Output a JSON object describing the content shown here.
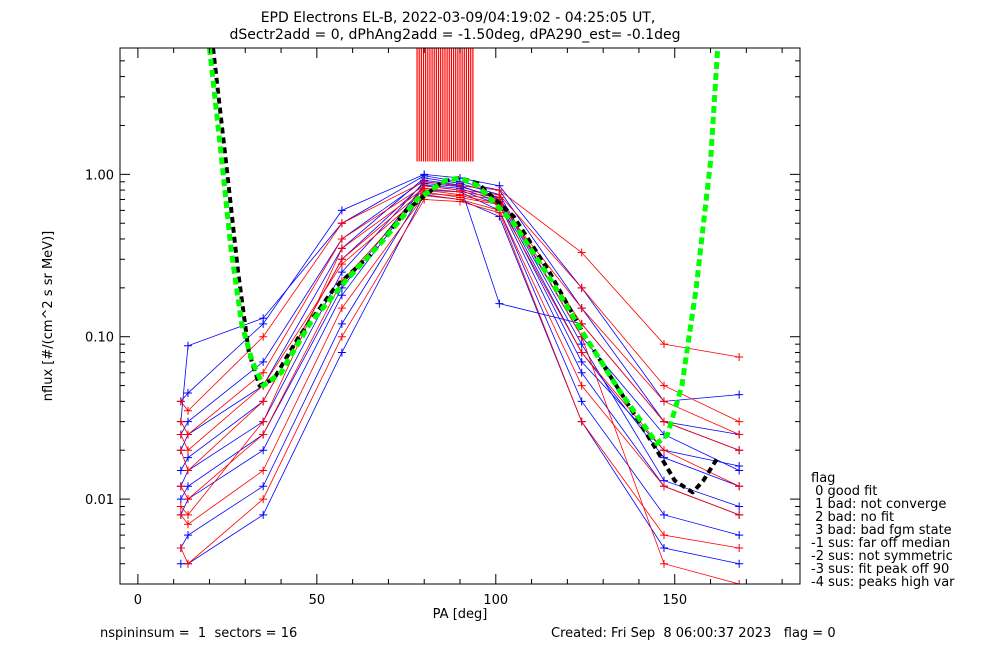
{
  "title_line1": "EPD Electrons EL-B, 2022-03-09/04:19:02 - 04:25:05 UT,",
  "title_line2": "dSectr2add = 0, dPhAng2add = -1.50deg, dPA290_est=  -0.1deg",
  "footer": {
    "left": "nspininsum =  1  sectors = 16",
    "right": "Created: Fri Sep  8 06:00:37 2023   flag = 0"
  },
  "legend": {
    "title": "flag",
    "entries": [
      " 0 good fit",
      " 1 bad: not converge",
      " 2 bad: no fit",
      " 3 bad: bad fgm state",
      "-1 sus: far off median",
      "-2 sus: not symmetric",
      "-3 sus: fit peak off 90",
      "-4 sus: peaks high var"
    ]
  },
  "colors": {
    "red_series": "#ff0000",
    "blue_series": "#0000ff",
    "fit_green": "#00ff00",
    "fit_black": "#000000"
  },
  "chart_data": {
    "type": "line",
    "xlabel": "PA [deg]",
    "ylabel": "nflux [#/(cm^2 s sr MeV)]",
    "xlim": [
      -5,
      185
    ],
    "ylim": [
      0.003,
      6
    ],
    "yscale": "log",
    "x_ticks": [
      0,
      50,
      100,
      150
    ],
    "y_ticks": [
      0.01,
      0.1,
      1.0
    ],
    "y_tick_labels": [
      "0.01",
      "0.10",
      "1.00"
    ],
    "grid": false,
    "pa_bins": [
      12,
      14,
      35,
      57,
      80,
      90,
      101,
      124,
      147,
      168
    ],
    "series": [
      {
        "color": "blue",
        "values": [
          0.04,
          0.045,
          0.12,
          0.6,
          1.0,
          0.95,
          0.85,
          0.2,
          0.04,
          0.044
        ]
      },
      {
        "color": "blue",
        "values": [
          0.03,
          0.088,
          0.13,
          0.5,
          0.98,
          0.9,
          0.8,
          0.15,
          0.03,
          0.02
        ]
      },
      {
        "color": "blue",
        "values": [
          0.02,
          0.025,
          0.05,
          0.35,
          0.95,
          0.88,
          0.75,
          0.1,
          0.025,
          0.015
        ]
      },
      {
        "color": "blue",
        "values": [
          0.012,
          0.015,
          0.03,
          0.25,
          0.9,
          0.85,
          0.7,
          0.08,
          0.018,
          0.012
        ]
      },
      {
        "color": "blue",
        "values": [
          0.008,
          0.01,
          0.02,
          0.18,
          0.85,
          0.8,
          0.65,
          0.06,
          0.012,
          0.008
        ]
      },
      {
        "color": "blue",
        "values": [
          0.005,
          0.006,
          0.012,
          0.12,
          0.8,
          0.78,
          0.6,
          0.04,
          0.008,
          0.006
        ]
      },
      {
        "color": "blue",
        "values": [
          0.004,
          0.004,
          0.008,
          0.08,
          0.75,
          0.7,
          0.55,
          0.03,
          0.005,
          0.004
        ]
      },
      {
        "color": "blue",
        "values": [
          0.025,
          0.03,
          0.07,
          0.4,
          0.92,
          0.86,
          0.16,
          0.12,
          0.03,
          0.025
        ]
      },
      {
        "color": "blue",
        "values": [
          0.015,
          0.018,
          0.04,
          0.3,
          0.88,
          0.84,
          0.72,
          0.09,
          0.013,
          0.009
        ]
      },
      {
        "color": "blue",
        "values": [
          0.01,
          0.012,
          0.025,
          0.2,
          0.86,
          0.82,
          0.68,
          0.07,
          0.02,
          0.016
        ]
      },
      {
        "color": "red",
        "values": [
          0.04,
          0.035,
          0.1,
          0.5,
          0.9,
          0.85,
          0.8,
          0.33,
          0.09,
          0.075
        ]
      },
      {
        "color": "red",
        "values": [
          0.03,
          0.025,
          0.06,
          0.4,
          0.85,
          0.8,
          0.75,
          0.2,
          0.05,
          0.03
        ]
      },
      {
        "color": "red",
        "values": [
          0.02,
          0.015,
          0.04,
          0.3,
          0.8,
          0.75,
          0.7,
          0.12,
          0.03,
          0.02
        ]
      },
      {
        "color": "red",
        "values": [
          0.012,
          0.01,
          0.025,
          0.22,
          0.78,
          0.72,
          0.65,
          0.08,
          0.02,
          0.012
        ]
      },
      {
        "color": "red",
        "values": [
          0.008,
          0.007,
          0.015,
          0.15,
          0.74,
          0.7,
          0.6,
          0.05,
          0.012,
          0.008
        ]
      },
      {
        "color": "red",
        "values": [
          0.005,
          0.004,
          0.01,
          0.1,
          0.7,
          0.68,
          0.58,
          0.03,
          0.006,
          0.005
        ]
      },
      {
        "color": "red",
        "values": [
          0.009,
          0.008,
          0.03,
          0.35,
          0.82,
          0.78,
          0.72,
          0.1,
          0.004,
          0.003
        ]
      },
      {
        "color": "red",
        "values": [
          0.025,
          0.02,
          0.05,
          0.28,
          0.76,
          0.74,
          0.66,
          0.15,
          0.04,
          0.025
        ]
      }
    ],
    "spike_pa_range": [
      78,
      94
    ],
    "fit_curves": [
      {
        "color": "black",
        "style": "dashed",
        "x": [
          21,
          25,
          28,
          31,
          34,
          38,
          45,
          55,
          65,
          75,
          85,
          90,
          95,
          105,
          115,
          125,
          135,
          145,
          150,
          155,
          158,
          162
        ],
        "y": [
          6,
          1.0,
          0.25,
          0.08,
          0.05,
          0.055,
          0.1,
          0.2,
          0.32,
          0.6,
          0.9,
          0.95,
          0.88,
          0.55,
          0.25,
          0.1,
          0.045,
          0.02,
          0.013,
          0.011,
          0.013,
          0.018
        ]
      },
      {
        "color": "green",
        "style": "dashed",
        "x": [
          20,
          23,
          26,
          29,
          32,
          35,
          40,
          48,
          58,
          68,
          78,
          86,
          90,
          95,
          105,
          115,
          125,
          135,
          145,
          148,
          152,
          156,
          160,
          162
        ],
        "y": [
          6,
          1.5,
          0.35,
          0.12,
          0.07,
          0.05,
          0.06,
          0.12,
          0.22,
          0.38,
          0.7,
          0.92,
          0.95,
          0.85,
          0.5,
          0.23,
          0.1,
          0.045,
          0.022,
          0.025,
          0.05,
          0.2,
          1.2,
          6
        ]
      }
    ]
  }
}
